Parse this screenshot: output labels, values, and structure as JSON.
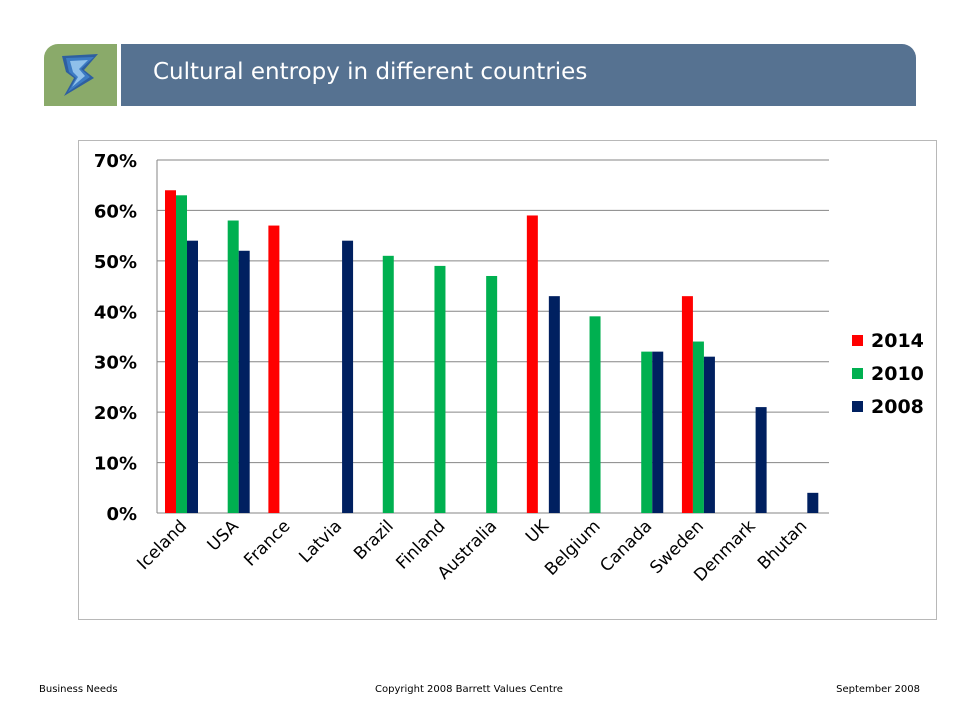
{
  "header": {
    "title": "Cultural entropy in different countries",
    "logo_icon": "barrett-logo-icon",
    "colors": {
      "logo_bg": "#8aaa6a",
      "title_bg": "#567291"
    }
  },
  "footer": {
    "left": "Business Needs",
    "center": "Copyright 2008 Barrett Values Centre",
    "right": "September 2008"
  },
  "chart_data": {
    "type": "bar",
    "categories": [
      "Iceland",
      "USA",
      "France",
      "Latvia",
      "Brazil",
      "Finland",
      "Australia",
      "UK",
      "Belgium",
      "Canada",
      "Sweden",
      "Denmark",
      "Bhutan"
    ],
    "series": [
      {
        "name": "2014",
        "color": "#ff0000",
        "values": [
          64,
          null,
          57,
          null,
          null,
          null,
          null,
          59,
          null,
          null,
          43,
          null,
          null
        ]
      },
      {
        "name": "2010",
        "color": "#00b050",
        "values": [
          63,
          58,
          null,
          null,
          51,
          49,
          47,
          null,
          39,
          32,
          34,
          null,
          null
        ]
      },
      {
        "name": "2008",
        "color": "#002060",
        "values": [
          54,
          52,
          null,
          54,
          null,
          null,
          null,
          43,
          null,
          32,
          31,
          21,
          4
        ]
      }
    ],
    "yticks": [
      "0%",
      "10%",
      "20%",
      "30%",
      "40%",
      "50%",
      "60%",
      "70%"
    ],
    "ylim": [
      0,
      70
    ],
    "grid": true,
    "legend": "right"
  }
}
